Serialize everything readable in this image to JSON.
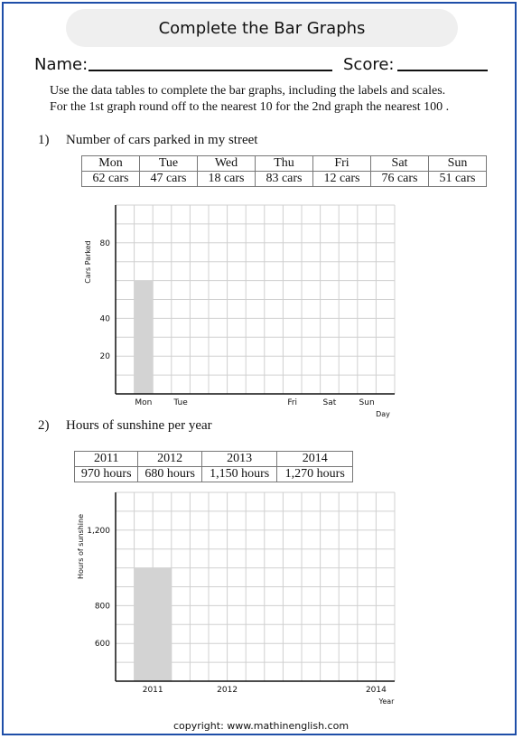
{
  "title": "Complete the Bar Graphs",
  "name_label": "Name:",
  "score_label": "Score:",
  "instructions": [
    "Use the data tables to complete the bar graphs, including the labels and scales.",
    "For the 1st graph round off to the nearest 10 for the 2nd graph the nearest 100 ."
  ],
  "question1": {
    "number": "1)",
    "text": "Number of cars parked in my street",
    "table": {
      "headers": [
        "Mon",
        "Tue",
        "Wed",
        "Thu",
        "Fri",
        "Sat",
        "Sun"
      ],
      "values": [
        "62  cars",
        "47  cars",
        "18  cars",
        "83  cars",
        "12  cars",
        "76  cars",
        "51  cars"
      ]
    }
  },
  "question2": {
    "number": "2)",
    "text": "Hours of sunshine per year",
    "table": {
      "headers": [
        "2011",
        "2012",
        "2013",
        "2014"
      ],
      "values": [
        "970 hours",
        "680 hours",
        "1,150 hours",
        "1,270 hours"
      ]
    }
  },
  "chart_data": [
    {
      "type": "bar",
      "ylabel": "Cars Parked",
      "xlabel": "Day",
      "x_tick_labels": [
        "Mon",
        "Tue",
        "",
        "",
        "Fri",
        "Sat",
        "Sun"
      ],
      "y_tick_labels": [
        {
          "value": 20,
          "label": "20"
        },
        {
          "value": 40,
          "label": "40"
        },
        {
          "value": 80,
          "label": "80"
        }
      ],
      "ylim": [
        0,
        100
      ],
      "grid": true,
      "bar_color": "#d3d3d3",
      "values": [
        60,
        null,
        null,
        null,
        null,
        null,
        null
      ]
    },
    {
      "type": "bar",
      "ylabel": "Hours of sunshine",
      "xlabel": "Year",
      "x_tick_labels": [
        "2011",
        "2012",
        "",
        "2014"
      ],
      "y_tick_labels": [
        {
          "value": 600,
          "label": "600"
        },
        {
          "value": 800,
          "label": "800"
        },
        {
          "value": 1200,
          "label": "1,200"
        }
      ],
      "ylim": [
        400,
        1400
      ],
      "grid": true,
      "bar_color": "#d3d3d3",
      "values": [
        1000,
        null,
        null,
        null
      ]
    }
  ],
  "footer": "copyright:     www.mathinenglish.com"
}
